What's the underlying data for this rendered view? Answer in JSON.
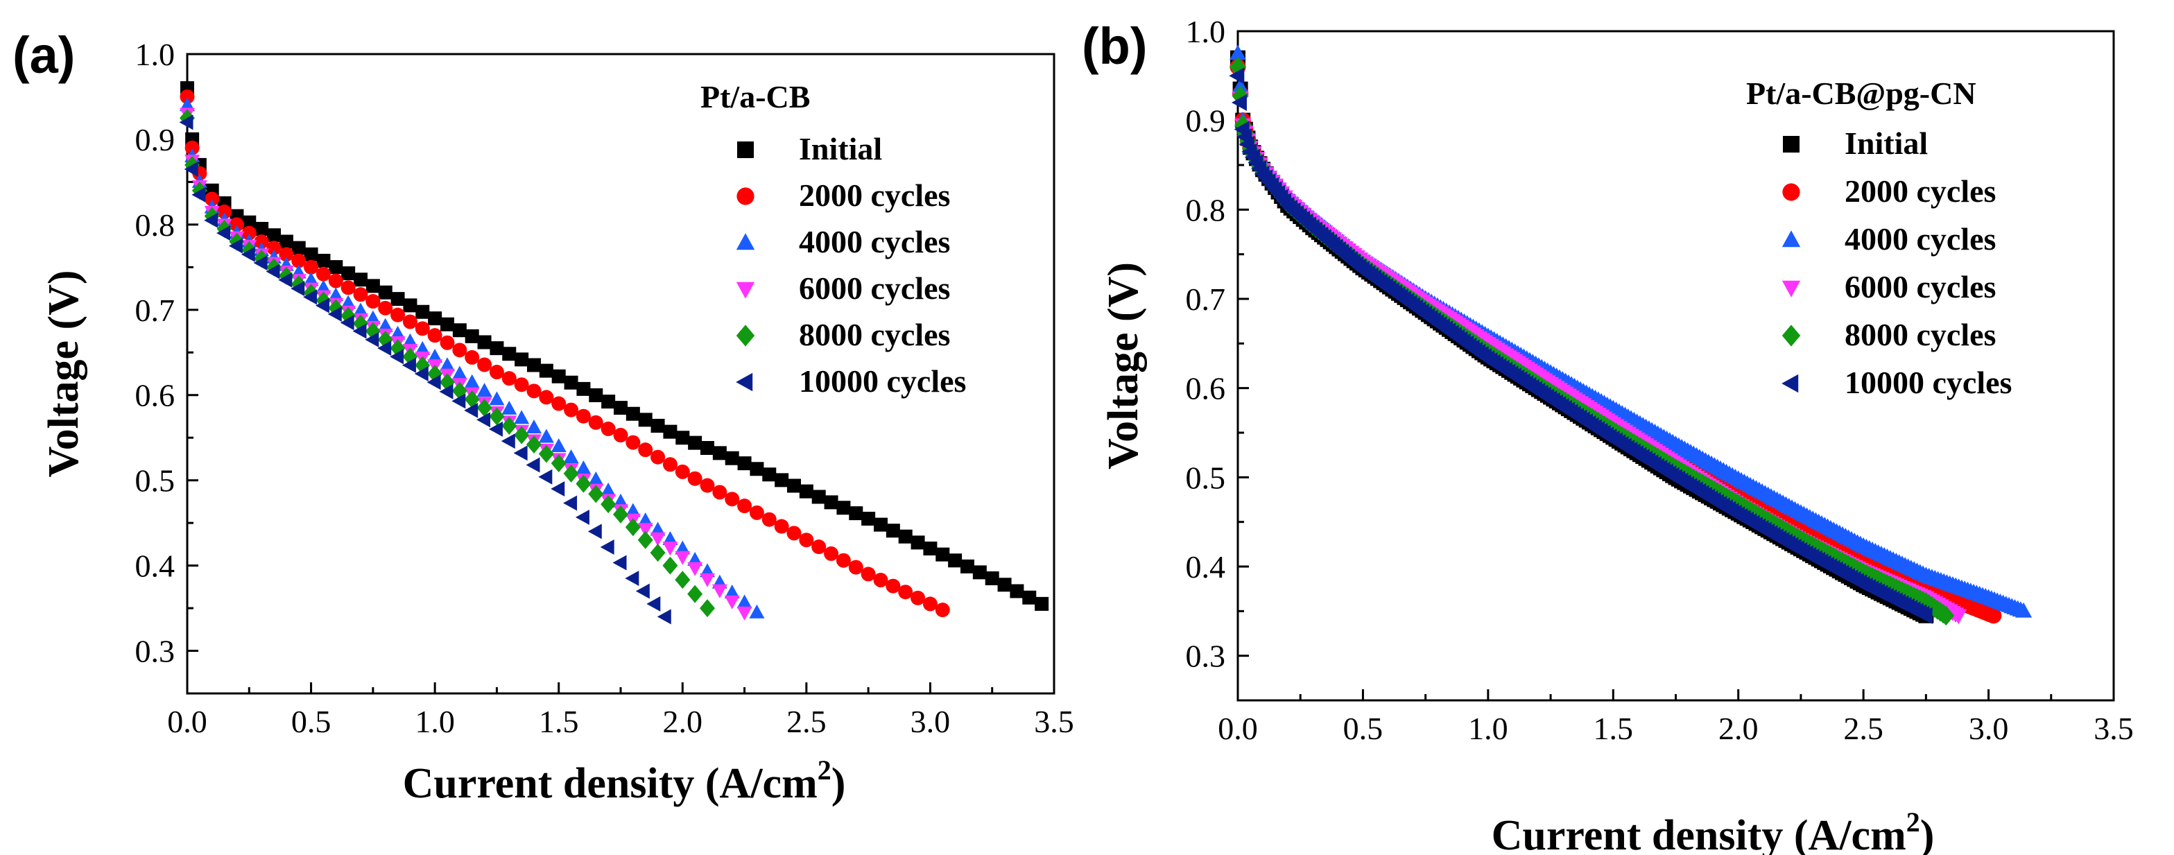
{
  "chart_data": [
    {
      "panel_label": "(a)",
      "type": "scatter",
      "title": "",
      "legend_title": "Pt/a-CB",
      "legend_placement": "top-right",
      "xlabel": "Current density (A/cm",
      "xlabel_sup": "2",
      "xlabel_close": ")",
      "ylabel": "Voltage (V)",
      "xlim": [
        0.0,
        3.5
      ],
      "ylim": [
        0.25,
        1.0
      ],
      "xticks": [
        "0.0",
        "0.5",
        "1.0",
        "1.5",
        "2.0",
        "2.5",
        "3.0",
        "3.5"
      ],
      "yticks": [
        "0.3",
        "0.4",
        "0.5",
        "0.6",
        "0.7",
        "0.8",
        "0.9",
        "1.0"
      ],
      "series": [
        {
          "name": "Initial",
          "marker": "square",
          "color": "#000000",
          "x": [
            0.0,
            0.02,
            0.05,
            0.1,
            0.2,
            0.3,
            0.5,
            0.75,
            1.0,
            1.25,
            1.5,
            1.75,
            2.0,
            2.25,
            2.5,
            2.75,
            3.0,
            3.25,
            3.45
          ],
          "y": [
            0.96,
            0.9,
            0.87,
            0.84,
            0.81,
            0.795,
            0.765,
            0.728,
            0.69,
            0.655,
            0.622,
            0.585,
            0.55,
            0.52,
            0.487,
            0.455,
            0.42,
            0.385,
            0.355
          ]
        },
        {
          "name": "2000 cycles",
          "marker": "circle",
          "color": "#ff0000",
          "x": [
            0.0,
            0.02,
            0.05,
            0.1,
            0.2,
            0.3,
            0.5,
            0.75,
            1.0,
            1.25,
            1.5,
            1.75,
            2.0,
            2.25,
            2.5,
            2.75,
            3.05
          ],
          "y": [
            0.95,
            0.89,
            0.86,
            0.83,
            0.8,
            0.78,
            0.75,
            0.71,
            0.67,
            0.627,
            0.59,
            0.553,
            0.51,
            0.47,
            0.43,
            0.39,
            0.348
          ]
        },
        {
          "name": "4000 cycles",
          "marker": "triangle-up",
          "color": "#1a5cff",
          "x": [
            0.0,
            0.02,
            0.05,
            0.1,
            0.2,
            0.3,
            0.5,
            0.75,
            1.0,
            1.25,
            1.5,
            1.75,
            2.0,
            2.15,
            2.3
          ],
          "y": [
            0.94,
            0.88,
            0.85,
            0.82,
            0.79,
            0.77,
            0.735,
            0.69,
            0.645,
            0.595,
            0.54,
            0.475,
            0.42,
            0.38,
            0.345
          ]
        },
        {
          "name": "6000 cycles",
          "marker": "triangle-down",
          "color": "#ff33ff",
          "x": [
            0.0,
            0.02,
            0.05,
            0.1,
            0.2,
            0.3,
            0.5,
            0.75,
            1.0,
            1.25,
            1.5,
            1.75,
            2.0,
            2.25
          ],
          "y": [
            0.93,
            0.875,
            0.845,
            0.815,
            0.785,
            0.765,
            0.725,
            0.68,
            0.635,
            0.58,
            0.525,
            0.465,
            0.41,
            0.345
          ]
        },
        {
          "name": "8000 cycles",
          "marker": "diamond",
          "color": "#119911",
          "x": [
            0.0,
            0.02,
            0.05,
            0.1,
            0.2,
            0.3,
            0.5,
            0.75,
            1.0,
            1.25,
            1.5,
            1.75,
            1.95,
            2.1
          ],
          "y": [
            0.925,
            0.87,
            0.84,
            0.81,
            0.78,
            0.76,
            0.72,
            0.675,
            0.625,
            0.575,
            0.52,
            0.46,
            0.4,
            0.35
          ]
        },
        {
          "name": "10000 cycles",
          "marker": "triangle-left",
          "color": "#0a1f8f",
          "x": [
            0.0,
            0.02,
            0.05,
            0.1,
            0.2,
            0.3,
            0.5,
            0.75,
            1.0,
            1.25,
            1.5,
            1.65,
            1.8,
            1.93
          ],
          "y": [
            0.92,
            0.865,
            0.835,
            0.805,
            0.775,
            0.755,
            0.715,
            0.665,
            0.615,
            0.56,
            0.49,
            0.44,
            0.385,
            0.34
          ]
        }
      ]
    },
    {
      "panel_label": "(b)",
      "type": "scatter",
      "title": "",
      "legend_title": "Pt/a-CB@pg-CN",
      "legend_placement": "top-right",
      "xlabel": "Current density (A/cm",
      "xlabel_sup": "2",
      "xlabel_close": ")",
      "ylabel": "Voltage (V)",
      "xlim": [
        0.0,
        3.5
      ],
      "ylim": [
        0.25,
        1.0
      ],
      "xticks": [
        "0.0",
        "0.5",
        "1.0",
        "1.5",
        "2.0",
        "2.5",
        "3.0",
        "3.5"
      ],
      "yticks": [
        "0.3",
        "0.4",
        "0.5",
        "0.6",
        "0.7",
        "0.8",
        "0.9",
        "1.0"
      ],
      "series": [
        {
          "name": "Initial",
          "marker": "square",
          "color": "#000000",
          "x": [
            0.0,
            0.02,
            0.05,
            0.1,
            0.2,
            0.3,
            0.5,
            0.75,
            1.0,
            1.25,
            1.5,
            1.75,
            2.0,
            2.25,
            2.5,
            2.75
          ],
          "y": [
            0.97,
            0.9,
            0.87,
            0.845,
            0.805,
            0.78,
            0.735,
            0.685,
            0.635,
            0.59,
            0.545,
            0.5,
            0.46,
            0.42,
            0.38,
            0.345
          ]
        },
        {
          "name": "2000 cycles",
          "marker": "circle",
          "color": "#ff0000",
          "x": [
            0.0,
            0.02,
            0.05,
            0.1,
            0.2,
            0.3,
            0.5,
            0.75,
            1.0,
            1.25,
            1.5,
            1.75,
            2.0,
            2.25,
            2.5,
            2.75,
            3.02
          ],
          "y": [
            0.96,
            0.9,
            0.87,
            0.845,
            0.81,
            0.785,
            0.74,
            0.695,
            0.65,
            0.607,
            0.565,
            0.525,
            0.485,
            0.447,
            0.41,
            0.375,
            0.345
          ]
        },
        {
          "name": "4000 cycles",
          "marker": "triangle-up",
          "color": "#1a5cff",
          "x": [
            0.0,
            0.02,
            0.05,
            0.1,
            0.2,
            0.3,
            0.5,
            0.75,
            1.0,
            1.25,
            1.5,
            1.75,
            2.0,
            2.25,
            2.5,
            2.75,
            3.0,
            3.14
          ],
          "y": [
            0.975,
            0.9,
            0.87,
            0.85,
            0.815,
            0.79,
            0.745,
            0.7,
            0.658,
            0.617,
            0.577,
            0.537,
            0.498,
            0.46,
            0.423,
            0.39,
            0.365,
            0.35
          ]
        },
        {
          "name": "6000 cycles",
          "marker": "triangle-down",
          "color": "#ff33ff",
          "x": [
            0.0,
            0.02,
            0.05,
            0.1,
            0.2,
            0.3,
            0.5,
            0.75,
            1.0,
            1.25,
            1.5,
            1.75,
            2.0,
            2.25,
            2.5,
            2.75,
            2.88
          ],
          "y": [
            0.955,
            0.895,
            0.87,
            0.845,
            0.81,
            0.785,
            0.742,
            0.695,
            0.65,
            0.605,
            0.56,
            0.515,
            0.47,
            0.43,
            0.395,
            0.365,
            0.345
          ]
        },
        {
          "name": "8000 cycles",
          "marker": "diamond",
          "color": "#119911",
          "x": [
            0.0,
            0.02,
            0.05,
            0.1,
            0.2,
            0.3,
            0.5,
            0.75,
            1.0,
            1.25,
            1.5,
            1.75,
            2.0,
            2.25,
            2.5,
            2.75,
            2.83
          ],
          "y": [
            0.96,
            0.895,
            0.868,
            0.843,
            0.807,
            0.782,
            0.737,
            0.688,
            0.64,
            0.595,
            0.552,
            0.51,
            0.47,
            0.43,
            0.393,
            0.36,
            0.345
          ]
        },
        {
          "name": "10000 cycles",
          "marker": "triangle-left",
          "color": "#0a1f8f",
          "x": [
            0.0,
            0.02,
            0.05,
            0.1,
            0.2,
            0.3,
            0.5,
            0.75,
            1.0,
            1.25,
            1.5,
            1.75,
            2.0,
            2.25,
            2.5,
            2.75
          ],
          "y": [
            0.95,
            0.89,
            0.865,
            0.84,
            0.805,
            0.78,
            0.733,
            0.683,
            0.633,
            0.588,
            0.543,
            0.5,
            0.458,
            0.418,
            0.38,
            0.345
          ]
        }
      ]
    }
  ]
}
